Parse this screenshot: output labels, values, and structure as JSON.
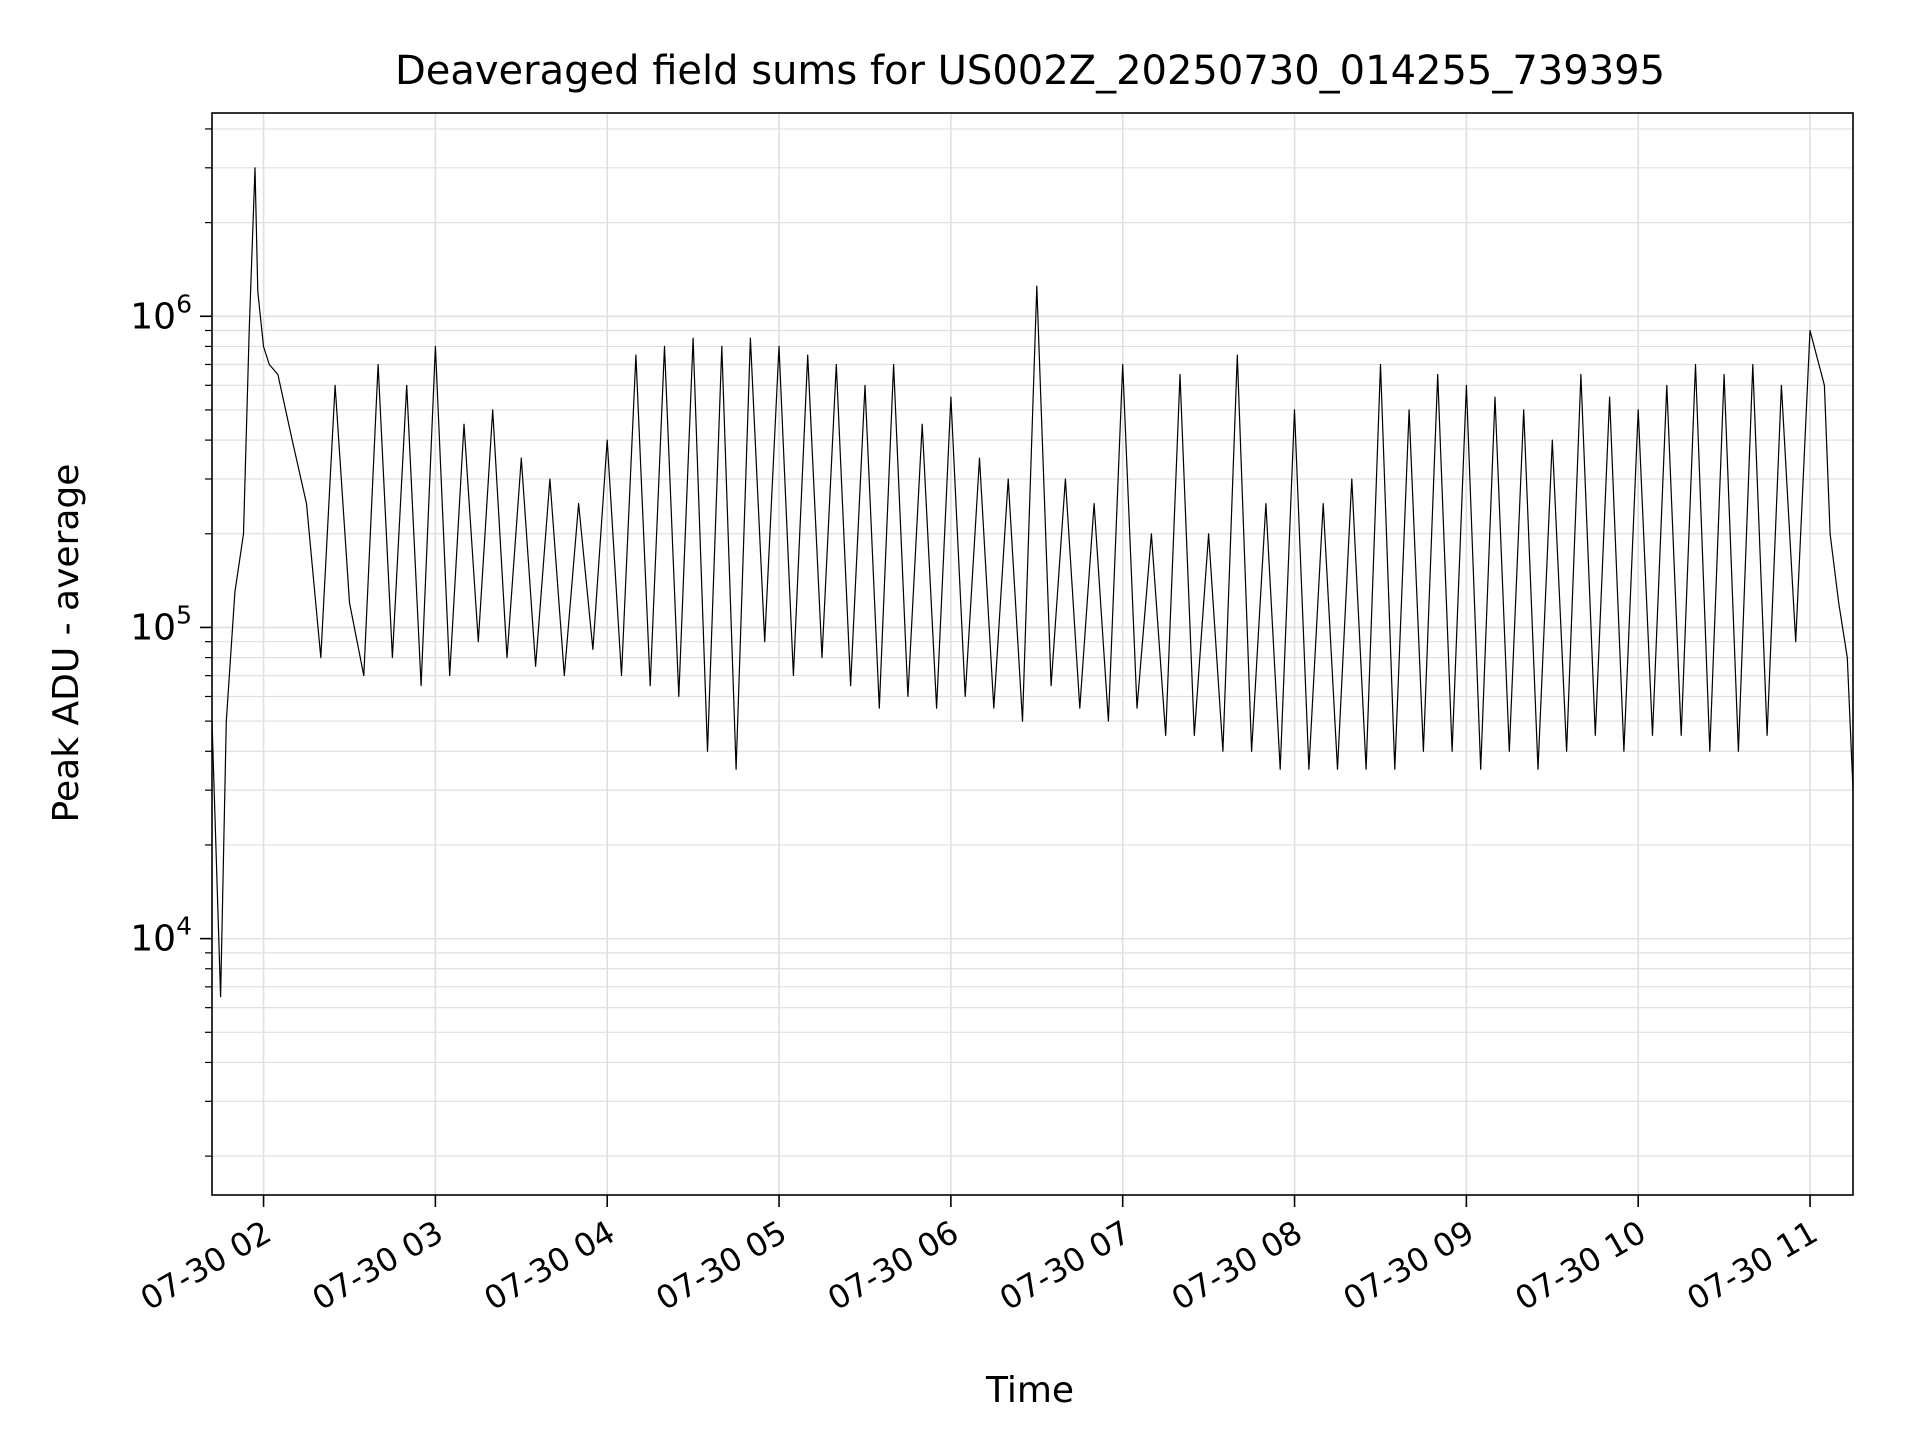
{
  "chart_data": {
    "type": "line",
    "title": "Deaveraged field sums for US002Z_20250730_014255_739395",
    "xlabel": "Time",
    "ylabel": "Peak ADU - average",
    "xscale": "time",
    "yscale": "log",
    "xlim": [
      "2025-07-30 01:42",
      "2025-07-30 11:15"
    ],
    "ylim": [
      1500,
      4500000
    ],
    "grid": true,
    "legend": false,
    "colors": {
      "line": "#000000",
      "grid": "#e0e0e0",
      "axes": "#000000",
      "background": "#ffffff"
    },
    "x_ticks": [
      {
        "label": "07-30 02",
        "time": "2025-07-30 02:00"
      },
      {
        "label": "07-30 03",
        "time": "2025-07-30 03:00"
      },
      {
        "label": "07-30 04",
        "time": "2025-07-30 04:00"
      },
      {
        "label": "07-30 05",
        "time": "2025-07-30 05:00"
      },
      {
        "label": "07-30 06",
        "time": "2025-07-30 06:00"
      },
      {
        "label": "07-30 07",
        "time": "2025-07-30 07:00"
      },
      {
        "label": "07-30 08",
        "time": "2025-07-30 08:00"
      },
      {
        "label": "07-30 09",
        "time": "2025-07-30 09:00"
      },
      {
        "label": "07-30 10",
        "time": "2025-07-30 10:00"
      },
      {
        "label": "07-30 11",
        "time": "2025-07-30 11:00"
      }
    ],
    "y_ticks": [
      {
        "base": "10",
        "exp": "4",
        "value": 10000
      },
      {
        "base": "10",
        "exp": "5",
        "value": 100000
      },
      {
        "base": "10",
        "exp": "6",
        "value": 1000000
      }
    ],
    "series": [
      {
        "x": [
          "2025-07-30 01:42",
          "2025-07-30 01:45",
          "2025-07-30 01:47",
          "2025-07-30 01:50",
          "2025-07-30 01:53",
          "2025-07-30 01:55",
          "2025-07-30 01:57",
          "2025-07-30 01:58",
          "2025-07-30 02:00",
          "2025-07-30 02:02",
          "2025-07-30 02:05",
          "2025-07-30 02:10",
          "2025-07-30 02:15",
          "2025-07-30 02:20",
          "2025-07-30 02:25",
          "2025-07-30 02:30",
          "2025-07-30 02:35",
          "2025-07-30 02:40",
          "2025-07-30 02:45",
          "2025-07-30 02:50",
          "2025-07-30 02:55",
          "2025-07-30 03:00",
          "2025-07-30 03:05",
          "2025-07-30 03:10",
          "2025-07-30 03:15",
          "2025-07-30 03:20",
          "2025-07-30 03:25",
          "2025-07-30 03:30",
          "2025-07-30 03:35",
          "2025-07-30 03:40",
          "2025-07-30 03:45",
          "2025-07-30 03:50",
          "2025-07-30 03:55",
          "2025-07-30 04:00",
          "2025-07-30 04:05",
          "2025-07-30 04:10",
          "2025-07-30 04:15",
          "2025-07-30 04:20",
          "2025-07-30 04:25",
          "2025-07-30 04:30",
          "2025-07-30 04:35",
          "2025-07-30 04:40",
          "2025-07-30 04:45",
          "2025-07-30 04:50",
          "2025-07-30 04:55",
          "2025-07-30 05:00",
          "2025-07-30 05:05",
          "2025-07-30 05:10",
          "2025-07-30 05:15",
          "2025-07-30 05:20",
          "2025-07-30 05:25",
          "2025-07-30 05:30",
          "2025-07-30 05:35",
          "2025-07-30 05:40",
          "2025-07-30 05:45",
          "2025-07-30 05:50",
          "2025-07-30 05:55",
          "2025-07-30 06:00",
          "2025-07-30 06:05",
          "2025-07-30 06:10",
          "2025-07-30 06:15",
          "2025-07-30 06:20",
          "2025-07-30 06:25",
          "2025-07-30 06:30",
          "2025-07-30 06:35",
          "2025-07-30 06:40",
          "2025-07-30 06:45",
          "2025-07-30 06:50",
          "2025-07-30 06:55",
          "2025-07-30 07:00",
          "2025-07-30 07:05",
          "2025-07-30 07:10",
          "2025-07-30 07:15",
          "2025-07-30 07:20",
          "2025-07-30 07:25",
          "2025-07-30 07:30",
          "2025-07-30 07:35",
          "2025-07-30 07:40",
          "2025-07-30 07:45",
          "2025-07-30 07:50",
          "2025-07-30 07:55",
          "2025-07-30 08:00",
          "2025-07-30 08:05",
          "2025-07-30 08:10",
          "2025-07-30 08:15",
          "2025-07-30 08:20",
          "2025-07-30 08:25",
          "2025-07-30 08:30",
          "2025-07-30 08:35",
          "2025-07-30 08:40",
          "2025-07-30 08:45",
          "2025-07-30 08:50",
          "2025-07-30 08:55",
          "2025-07-30 09:00",
          "2025-07-30 09:05",
          "2025-07-30 09:10",
          "2025-07-30 09:15",
          "2025-07-30 09:20",
          "2025-07-30 09:25",
          "2025-07-30 09:30",
          "2025-07-30 09:35",
          "2025-07-30 09:40",
          "2025-07-30 09:45",
          "2025-07-30 09:50",
          "2025-07-30 09:55",
          "2025-07-30 10:00",
          "2025-07-30 10:05",
          "2025-07-30 10:10",
          "2025-07-30 10:15",
          "2025-07-30 10:20",
          "2025-07-30 10:25",
          "2025-07-30 10:30",
          "2025-07-30 10:35",
          "2025-07-30 10:40",
          "2025-07-30 10:45",
          "2025-07-30 10:50",
          "2025-07-30 10:55",
          "2025-07-30 11:00",
          "2025-07-30 11:05",
          "2025-07-30 11:07",
          "2025-07-30 11:10",
          "2025-07-30 11:13",
          "2025-07-30 11:15"
        ],
        "y": [
          50000,
          6500,
          50000,
          130000,
          200000,
          900000,
          3000000,
          1200000,
          800000,
          700000,
          650000,
          400000,
          250000,
          80000,
          600000,
          120000,
          70000,
          700000,
          80000,
          600000,
          65000,
          800000,
          70000,
          450000,
          90000,
          500000,
          80000,
          350000,
          75000,
          300000,
          70000,
          250000,
          85000,
          400000,
          70000,
          750000,
          65000,
          800000,
          60000,
          850000,
          40000,
          800000,
          35000,
          850000,
          90000,
          800000,
          70000,
          750000,
          80000,
          700000,
          65000,
          600000,
          55000,
          700000,
          60000,
          450000,
          55000,
          550000,
          60000,
          350000,
          55000,
          300000,
          50000,
          1250000,
          65000,
          300000,
          55000,
          250000,
          50000,
          700000,
          55000,
          200000,
          45000,
          650000,
          45000,
          200000,
          40000,
          750000,
          40000,
          250000,
          35000,
          500000,
          35000,
          250000,
          35000,
          300000,
          35000,
          700000,
          35000,
          500000,
          40000,
          650000,
          40000,
          600000,
          35000,
          550000,
          40000,
          500000,
          35000,
          400000,
          40000,
          650000,
          45000,
          550000,
          40000,
          500000,
          45000,
          600000,
          45000,
          700000,
          40000,
          650000,
          40000,
          700000,
          45000,
          600000,
          90000,
          900000,
          600000,
          200000,
          120000,
          80000,
          30000
        ]
      }
    ]
  }
}
